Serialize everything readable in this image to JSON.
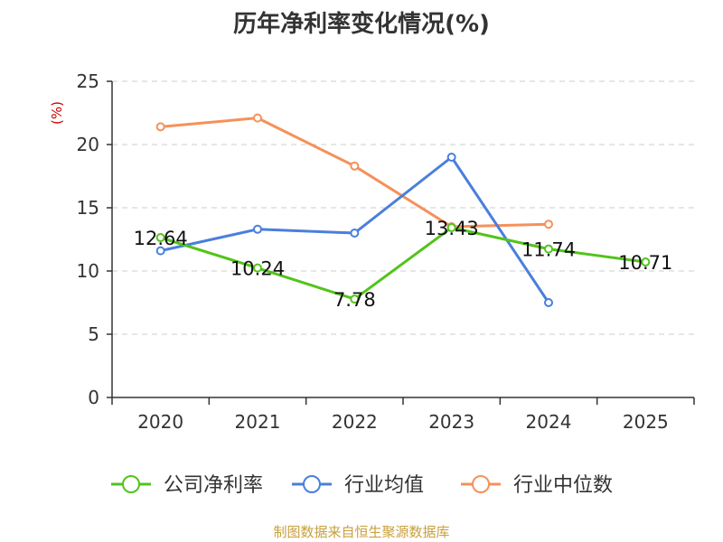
{
  "chart_data": {
    "type": "line",
    "title": "历年净利率变化情况(%)",
    "ylabel": "(%)",
    "categories": [
      "2020",
      "2021",
      "2022",
      "2023",
      "2024",
      "2025"
    ],
    "ylim": [
      0,
      25
    ],
    "yticks": [
      0,
      5,
      10,
      15,
      20,
      25
    ],
    "grid": true,
    "legend_position": "bottom",
    "series": [
      {
        "name": "公司净利率",
        "color": "#52c41a",
        "values": [
          12.64,
          10.24,
          7.78,
          13.43,
          11.74,
          10.71
        ],
        "labels": [
          "12.64",
          "10.24",
          "7.78",
          "13.43",
          "11.74",
          "10.71"
        ]
      },
      {
        "name": "行业均值",
        "color": "#4a7fdc",
        "values": [
          11.6,
          13.3,
          13.0,
          19.0,
          7.5,
          null
        ]
      },
      {
        "name": "行业中位数",
        "color": "#f5915a",
        "values": [
          21.4,
          22.1,
          18.3,
          13.5,
          13.7,
          null
        ]
      }
    ]
  },
  "source": "制图数据来自恒生聚源数据库"
}
